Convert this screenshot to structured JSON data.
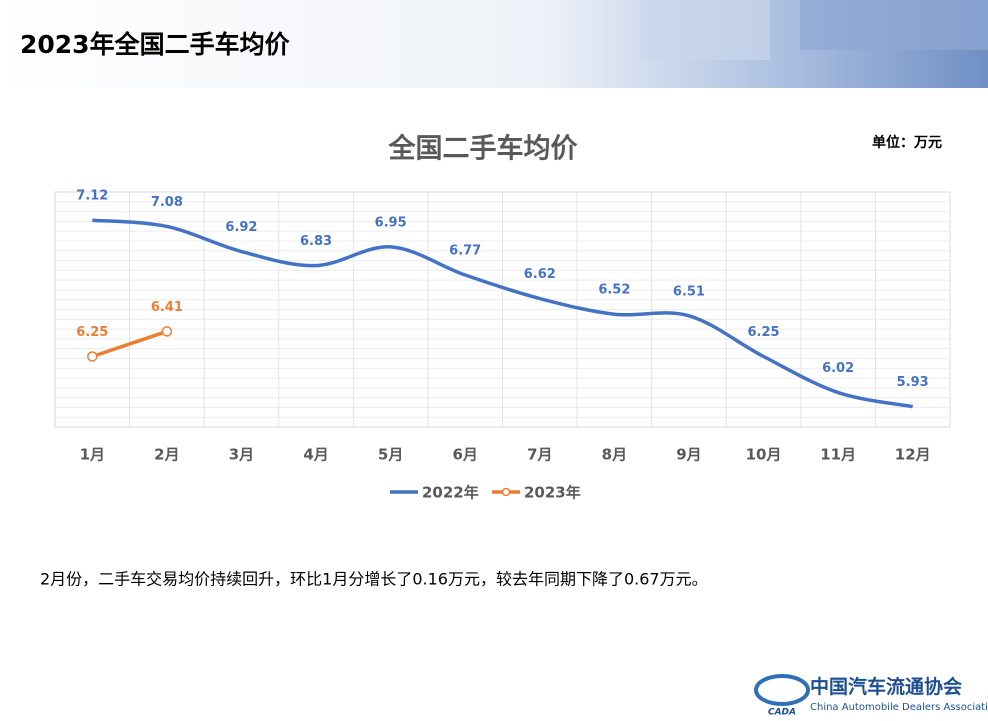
{
  "header": {
    "title": "2023年全国二手车均价"
  },
  "chart_data": {
    "type": "line",
    "title": "全国二手车均价",
    "unit": "单位：万元",
    "categories": [
      "1月",
      "2月",
      "3月",
      "4月",
      "5月",
      "6月",
      "7月",
      "8月",
      "9月",
      "10月",
      "11月",
      "12月"
    ],
    "series": [
      {
        "name": "2022年",
        "color": "#4472c4",
        "values": [
          7.12,
          7.08,
          6.92,
          6.83,
          6.95,
          6.77,
          6.62,
          6.52,
          6.51,
          6.25,
          6.02,
          5.93
        ]
      },
      {
        "name": "2023年",
        "color": "#ed7d31",
        "values": [
          6.25,
          6.41,
          null,
          null,
          null,
          null,
          null,
          null,
          null,
          null,
          null,
          null
        ]
      }
    ],
    "ylim": [
      5.8,
      7.3
    ],
    "legend": "bottom"
  },
  "note": "2月份，二手车交易均价持续回升，环比1月分增长了0.16万元，较去年同期下降了0.67万元。",
  "footer": {
    "org_cn": "中国汽车流通协会",
    "org_en": "China Automobile Dealers Association",
    "logo": "CADA"
  }
}
